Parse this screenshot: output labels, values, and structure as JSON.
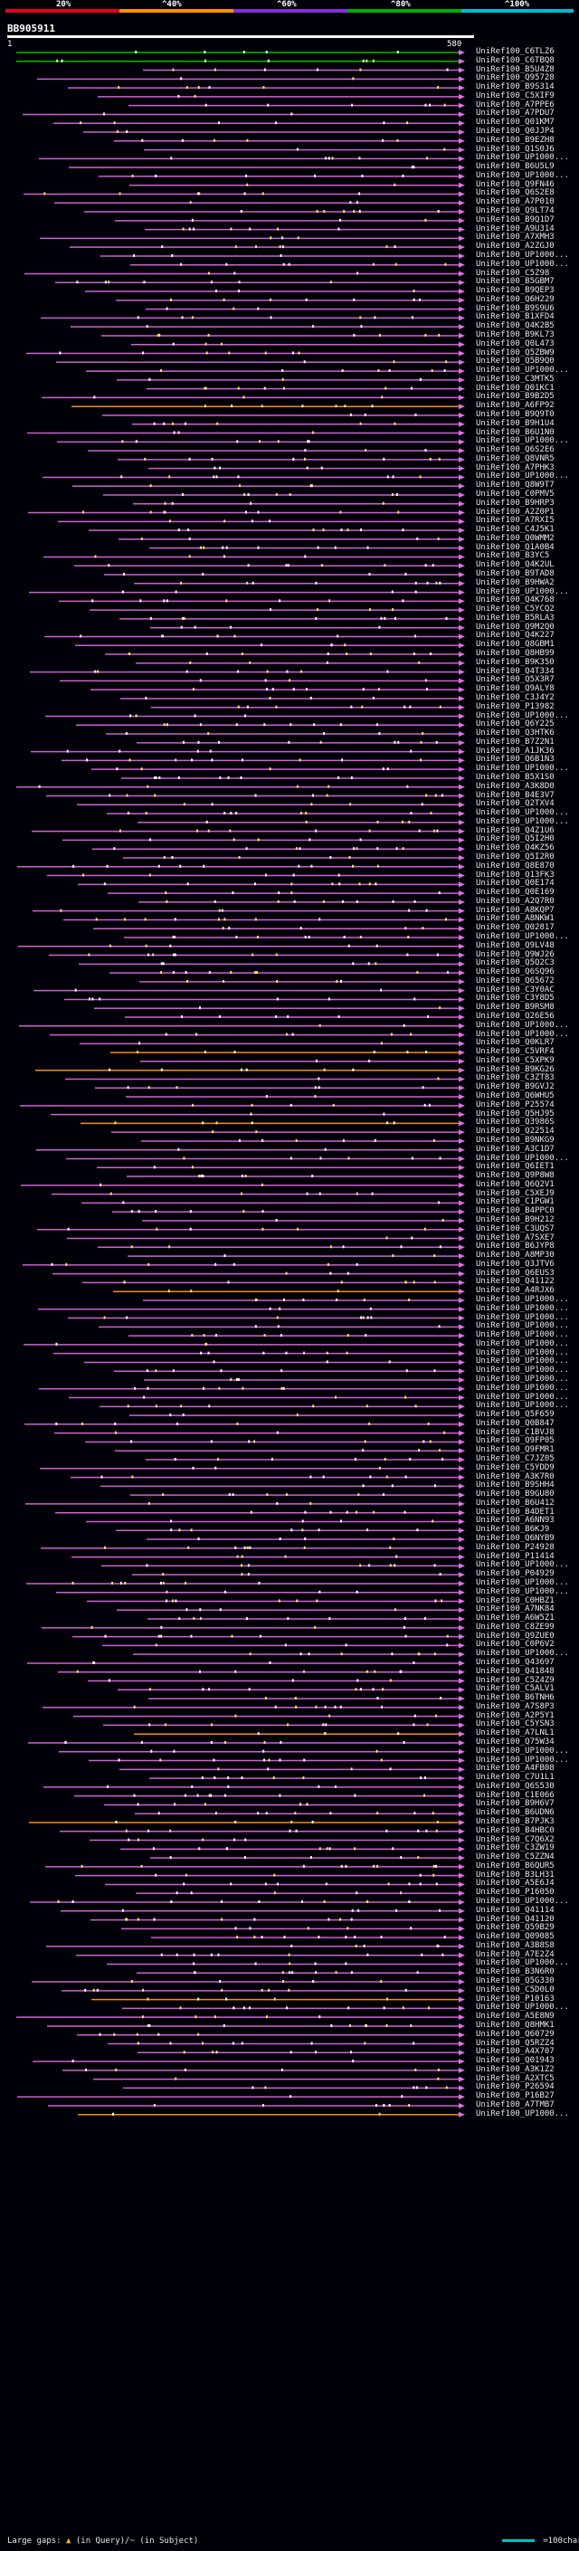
{
  "legend": [
    {
      "label": "20%",
      "color": "#e8001c"
    },
    {
      "label": "^40%",
      "color": "#ff8c00"
    },
    {
      "label": "^60%",
      "color": "#8a2be2"
    },
    {
      "label": "^80%",
      "color": "#00b000"
    },
    {
      "label": "^100%",
      "color": "#00bcd4"
    }
  ],
  "query": {
    "id": "BB905911",
    "start": "1",
    "end": "580"
  },
  "colors": {
    "green": "#00c000",
    "orange": "#ff8c00",
    "purple": "#d060d0",
    "pink": "#e070e0",
    "white": "#ffffff",
    "yellow": "#ffe070"
  },
  "hits": [
    "UniRef100_C6TLZ6",
    "UniRef100_C6TBQ8",
    "UniRef100_B5U4Z8",
    "UniRef100_Q95728",
    "UniRef100_B9S314",
    "UniRef100_C5XIF9",
    "UniRef100_A7PPE6",
    "UniRef100_A7PDU7",
    "UniRef100_Q01KM7",
    "UniRef100_Q0JJP4",
    "UniRef100_B9EZH8",
    "UniRef100_Q1S0J6",
    "UniRef100_UP1000...",
    "UniRef100_B6U5L9",
    "UniRef100_UP1000...",
    "UniRef100_Q9FN46",
    "UniRef100_Q6S2E8",
    "UniRef100_A7P010",
    "UniRef100_Q9LT74",
    "UniRef100_B9Q1D7",
    "UniRef100_A9U314",
    "UniRef100_A7XMH3",
    "UniRef100_A2ZGJ0",
    "UniRef100_UP1000...",
    "UniRef100_UP1000...",
    "UniRef100_C5Z98",
    "UniRef100_B5GBM7",
    "UniRef100_B9QEP3",
    "UniRef100_Q6H229",
    "UniRef100_B9S9U6",
    "UniRef100_B1XFD4",
    "UniRef100_Q4K2B5",
    "UniRef100_B9KL73",
    "UniRef100_Q0L473",
    "UniRef100_Q5ZBW9",
    "UniRef100_Q5B9Q0",
    "UniRef100_UP1000...",
    "UniRef100_C3MTK5",
    "UniRef100_Q01KC1",
    "UniRef100_B9B2D5",
    "UniRef100_A6FP92",
    "UniRef100_B9Q9T0",
    "UniRef100_B9H1U4",
    "UniRef100_B6U1N0",
    "UniRef100_UP1000...",
    "UniRef100_Q6S2E6",
    "UniRef100_Q8VNR5",
    "UniRef100_A7PHK3",
    "UniRef100_UP1000...",
    "UniRef100_Q8W9T7",
    "UniRef100_C0PMV5",
    "UniRef100_B9HRP3",
    "UniRef100_A2Z0P1",
    "UniRef100_A7RXI5",
    "UniRef100_C4J5K1",
    "UniRef100_Q0WMM2",
    "UniRef100_Q1A0B4",
    "UniRef100_B3YC5",
    "UniRef100_Q4K2UL",
    "UniRef100_B9TAD8",
    "UniRef100_B9HWA2",
    "UniRef100_UP1000...",
    "UniRef100_Q4K768",
    "UniRef100_C5YCQ2",
    "UniRef100_B5RLA3",
    "UniRef100_Q9M2Q0",
    "UniRef100_Q4K227",
    "UniRef100_Q8GBM1",
    "UniRef100_Q8HB99",
    "UniRef100_B9K350",
    "UniRef100_Q4T334",
    "UniRef100_Q5X3R7",
    "UniRef100_Q9ALY8",
    "UniRef100_C3J4Y2",
    "UniRef100_P13982",
    "UniRef100_UP1000...",
    "UniRef100_Q6Y225",
    "UniRef100_Q3HTK6",
    "UniRef100_B7Z2N1",
    "UniRef100_A1JK36",
    "UniRef100_Q6B1N3",
    "UniRef100_UP1000...",
    "UniRef100_B5X1S0",
    "UniRef100_A3K8D0",
    "UniRef100_B4E3V7",
    "UniRef100_Q2TXV4",
    "UniRef100_UP1000...",
    "UniRef100_UP1000...",
    "UniRef100_Q4Z1U6",
    "UniRef100_Q5I2H0",
    "UniRef100_Q4KZ56",
    "UniRef100_Q5I2R0",
    "UniRef100_Q8E870",
    "UniRef100_Q13FK3",
    "UniRef100_Q0E174",
    "UniRef100_Q0E169",
    "UniRef100_A2Q7R0",
    "UniRef100_A8KQP7",
    "UniRef100_A8NKW1",
    "UniRef100_Q02817",
    "UniRef100_UP1000...",
    "UniRef100_Q9LV48",
    "UniRef100_Q9WJ26",
    "UniRef100_Q5Q2C3",
    "UniRef100_Q6SQ96",
    "UniRef100_Q65672",
    "UniRef100_C3Y0AC",
    "UniRef100_C3Y8D5",
    "UniRef100_B9RSM8",
    "UniRef100_Q26E56",
    "UniRef100_UP1000...",
    "UniRef100_UP1000...",
    "UniRef100_Q0KLR7",
    "UniRef100_C5VRF4",
    "UniRef100_C5XPK9",
    "UniRef100_B9KG26",
    "UniRef100_C3ZT83",
    "UniRef100_B9GVJ2",
    "UniRef100_Q6WHU5",
    "UniRef100_P25574",
    "UniRef100_Q5HJ95",
    "UniRef100_Q3986S",
    "UniRef100_Q22514",
    "UniRef100_B9NKG9",
    "UniRef100_A3C1D7",
    "UniRef100_UP1000...",
    "UniRef100_Q6IET1",
    "UniRef100_Q9P8W8",
    "UniRef100_Q6Q2V1",
    "UniRef100_C5XEJ9",
    "UniRef100_C1PGW1",
    "UniRef100_B4PPC0",
    "UniRef100_B9H212",
    "UniRef100_C3UQS7",
    "UniRef100_A7SXE7",
    "UniRef100_B6JYP8",
    "UniRef100_A8MP30",
    "UniRef100_Q3JTV6",
    "UniRef100_Q6EUS3",
    "UniRef100_Q41122",
    "UniRef100_A4RJX6",
    "UniRef100_UP1000...",
    "UniRef100_UP1000...",
    "UniRef100_UP1000...",
    "UniRef100_UP1000...",
    "UniRef100_UP1000...",
    "UniRef100_UP1000...",
    "UniRef100_UP1000...",
    "UniRef100_UP1000...",
    "UniRef100_UP1000...",
    "UniRef100_UP1000...",
    "UniRef100_UP1000...",
    "UniRef100_UP1000...",
    "UniRef100_UP1000...",
    "UniRef100_Q5F659",
    "UniRef100_Q0B847",
    "UniRef100_C1BVJ8",
    "UniRef100_Q9FP05",
    "UniRef100_Q9FMR1",
    "UniRef100_C7JZ05",
    "UniRef100_C5YDD9",
    "UniRef100_A3K7R0",
    "UniRef100_B9SHH4",
    "UniRef100_B9GU80",
    "UniRef100_B6U412",
    "UniRef100_B4DET1",
    "UniRef100_A6NN93",
    "UniRef100_B6KJ9",
    "UniRef100_Q6NYB9",
    "UniRef100_P24928",
    "UniRef100_P11414",
    "UniRef100_UP1000...",
    "UniRef100_P04929",
    "UniRef100_UP1000...",
    "UniRef100_UP1000...",
    "UniRef100_C0HBZ1",
    "UniRef100_A7NK84",
    "UniRef100_A6W5Z1",
    "UniRef100_C8ZE99",
    "UniRef100_Q9ZUE0",
    "UniRef100_C0P6V2",
    "UniRef100_UP1000...",
    "UniRef100_Q43697",
    "UniRef100_Q41848",
    "UniRef100_C5Z4Z9",
    "UniRef100_C5ALV1",
    "UniRef100_B6TNH6",
    "UniRef100_A7S8P3",
    "UniRef100_A2P5Y1",
    "UniRef100_C5YSN3",
    "UniRef100_A7LNL1",
    "UniRef100_Q75W34",
    "UniRef100_UP1000...",
    "UniRef100_UP1000...",
    "UniRef100_A4FB08",
    "UniRef100_C7U1L1",
    "UniRef100_Q6S530",
    "UniRef100_C1E066",
    "UniRef100_B9H6V7",
    "UniRef100_B6UDN6",
    "UniRef100_B7PJK3",
    "UniRef100_B4HBC0",
    "UniRef100_C7Q6X2",
    "UniRef100_C3ZW19",
    "UniRef100_C5ZZN4",
    "UniRef100_B6QUR5",
    "UniRef100_B3LH31",
    "UniRef100_A5E6J4",
    "UniRef100_P16050",
    "UniRef100_UP1000...",
    "UniRef100_Q41114",
    "UniRef100_Q41120",
    "UniRef100_Q59B29",
    "UniRef100_Q09085",
    "UniRef100_A3B8S8",
    "UniRef100_A7E2Z4",
    "UniRef100_UP1000...",
    "UniRef100_B3N6R0",
    "UniRef100_Q5G330",
    "UniRef100_C5D0L0",
    "UniRef100_P10163",
    "UniRef100_UP1000...",
    "UniRef100_A5E8N9",
    "UniRef100_Q8HMK1",
    "UniRef100_Q60729",
    "UniRef100_Q5RZZ4",
    "UniRef100_A4X707",
    "UniRef100_Q01943",
    "UniRef100_A3K1Z2",
    "UniRef100_A2XTC5",
    "UniRef100_P26594",
    "UniRef100_P16B27",
    "UniRef100_A7TMB7",
    "UniRef100_UP1000..."
  ],
  "footer": {
    "gaps_label": "Large gaps:",
    "gap_text": "(in Query)/~ (in Subject)",
    "scale_label": "=100char."
  }
}
